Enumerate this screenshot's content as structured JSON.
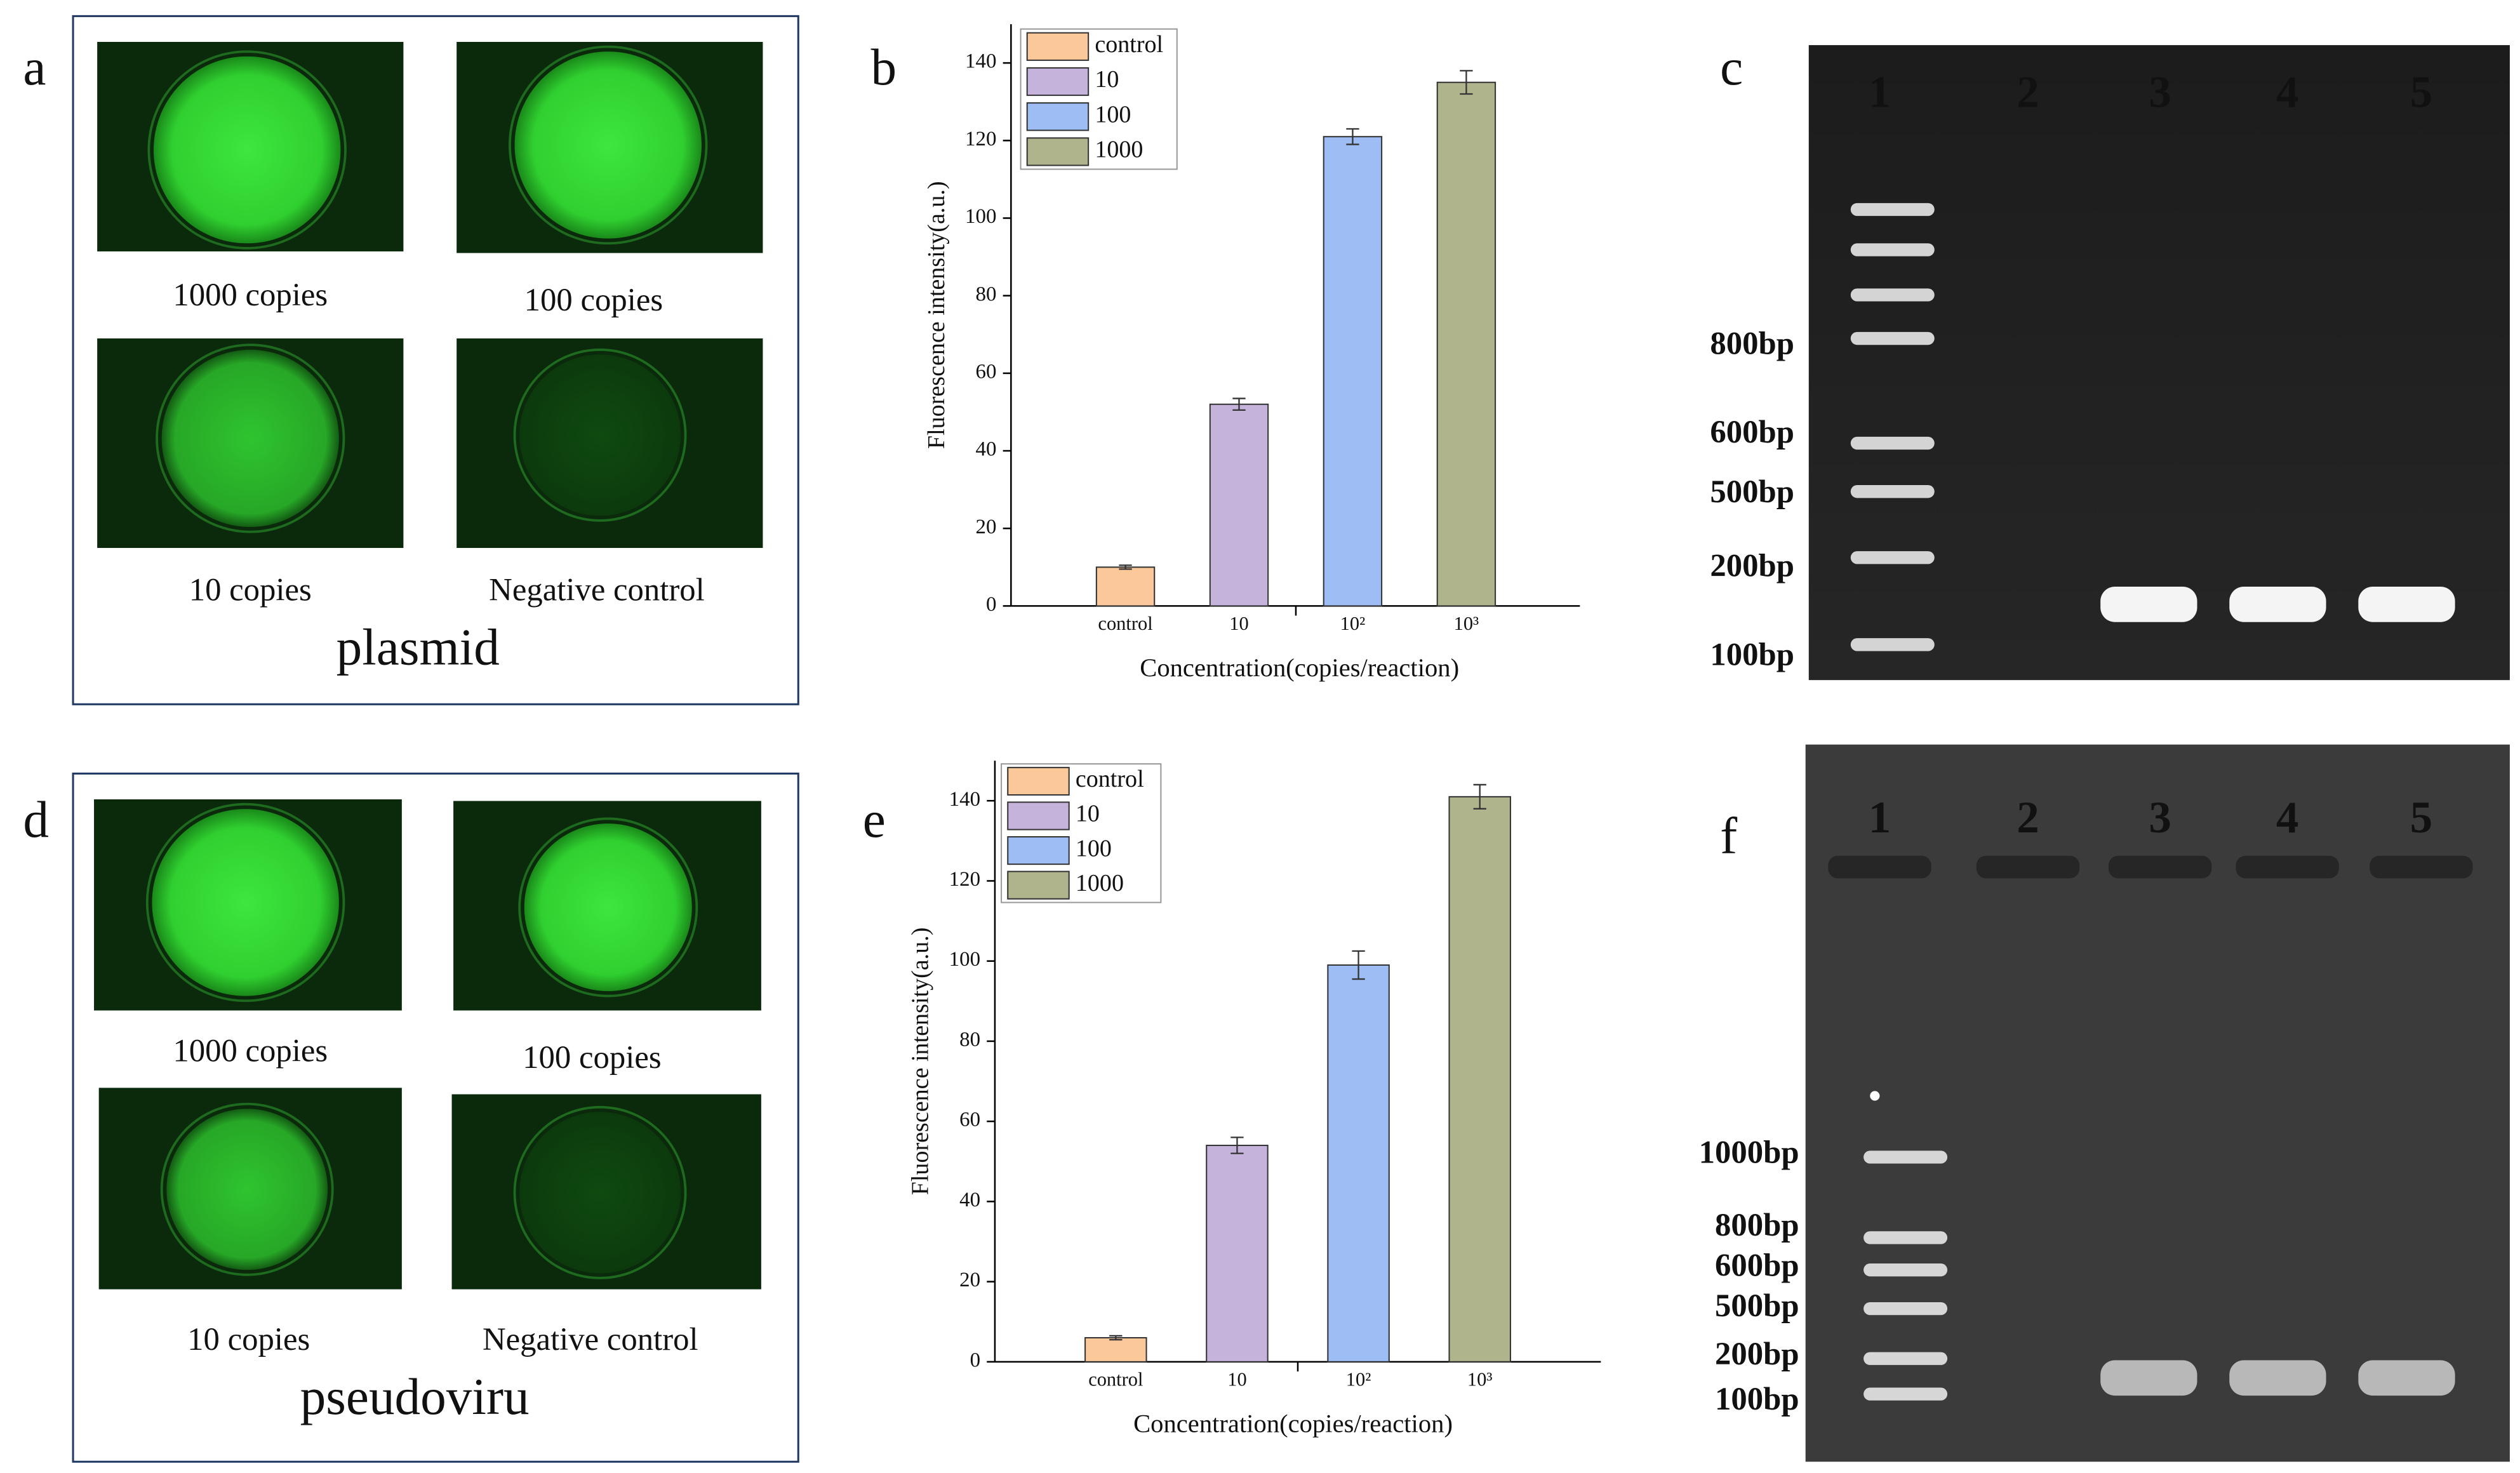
{
  "panel_labels": [
    "a",
    "b",
    "c",
    "d",
    "e",
    "f"
  ],
  "fluorescence_panels": [
    {
      "captions": [
        "1000 copies",
        "100 copies",
        "10 copies",
        "Negative control"
      ],
      "sample": "plasmid"
    },
    {
      "captions": [
        "1000 copies",
        "100 copies",
        "10 copies",
        "Negative control"
      ],
      "sample": "pseudoviru"
    }
  ],
  "gels": [
    {
      "lanes": [
        "1",
        "2",
        "3",
        "4",
        "5"
      ],
      "markers": [
        "800bp",
        "600bp",
        "500bp",
        "200bp",
        "100bp"
      ]
    },
    {
      "lanes": [
        "1",
        "2",
        "3",
        "4",
        "5"
      ],
      "markers": [
        "1000bp",
        "800bp",
        "600bp",
        "500bp",
        "200bp",
        "100bp"
      ]
    }
  ],
  "chart_data": [
    {
      "type": "bar",
      "y_label": "Fluorescence intensity(a.u.)",
      "x_label": "Concentration(copies/reaction)",
      "categories": [
        "control",
        "10",
        "10²",
        "10³"
      ],
      "series": [
        {
          "name": "control",
          "color": "#fbc89a",
          "values": [
            10,
            null,
            null,
            null
          ],
          "errors": [
            0.5,
            null,
            null,
            null
          ]
        },
        {
          "name": "10",
          "color": "#c6b3dc",
          "values": [
            null,
            52,
            null,
            null
          ],
          "errors": [
            null,
            1.5,
            null,
            null
          ]
        },
        {
          "name": "100",
          "color": "#9dbdf4",
          "values": [
            null,
            null,
            121,
            null
          ],
          "errors": [
            null,
            null,
            2,
            null
          ]
        },
        {
          "name": "1000",
          "color": "#b0b48d",
          "values": [
            null,
            null,
            null,
            135
          ],
          "errors": [
            null,
            null,
            null,
            3
          ]
        }
      ],
      "ylim": [
        0,
        150
      ],
      "yticks": [
        0,
        20,
        40,
        60,
        80,
        100,
        120,
        140
      ],
      "legend": "top-left"
    },
    {
      "type": "bar",
      "y_label": "Fluorescence intensity(a.u.)",
      "x_label": "Concentration(copies/reaction)",
      "categories": [
        "control",
        "10",
        "10²",
        "10³"
      ],
      "series": [
        {
          "name": "control",
          "color": "#fbc89a",
          "values": [
            6,
            null,
            null,
            null
          ],
          "errors": [
            0.5,
            null,
            null,
            null
          ]
        },
        {
          "name": "10",
          "color": "#c6b3dc",
          "values": [
            null,
            54,
            null,
            null
          ],
          "errors": [
            null,
            2,
            null,
            null
          ]
        },
        {
          "name": "100",
          "color": "#9dbdf4",
          "values": [
            null,
            null,
            99,
            null
          ],
          "errors": [
            null,
            null,
            3.5,
            null
          ]
        },
        {
          "name": "1000",
          "color": "#b0b48d",
          "values": [
            null,
            null,
            null,
            141
          ],
          "errors": [
            null,
            null,
            null,
            3
          ]
        }
      ],
      "ylim": [
        0,
        150
      ],
      "yticks": [
        0,
        20,
        40,
        60,
        80,
        100,
        120,
        140
      ],
      "legend": "top-left"
    }
  ]
}
